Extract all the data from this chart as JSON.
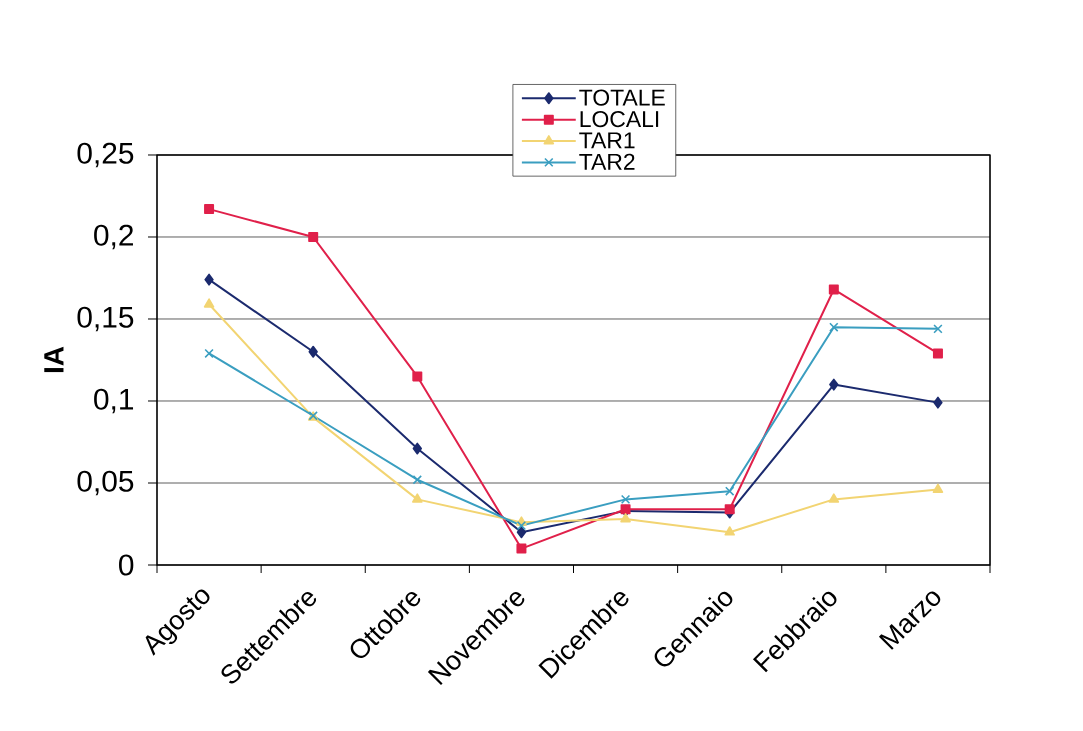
{
  "chart_data": {
    "type": "line",
    "ylabel": "IA",
    "categories": [
      "Agosto",
      "Settembre",
      "Ottobre",
      "Novembre",
      "Dicembre",
      "Gennaio",
      "Febbraio",
      "Marzo"
    ],
    "series": [
      {
        "name": "TOTALE",
        "color": "#1b2a6e",
        "marker": "diamond",
        "values": [
          0.174,
          0.13,
          0.071,
          0.02,
          0.033,
          0.032,
          0.11,
          0.099
        ]
      },
      {
        "name": "LOCALI",
        "color": "#e0204a",
        "marker": "square",
        "values": [
          0.217,
          0.2,
          0.115,
          0.01,
          0.034,
          0.034,
          0.168,
          0.129
        ]
      },
      {
        "name": "TAR1",
        "color": "#f2d472",
        "marker": "triangle",
        "values": [
          0.159,
          0.09,
          0.04,
          0.026,
          0.028,
          0.02,
          0.04,
          0.046
        ]
      },
      {
        "name": "TAR2",
        "color": "#3a9ec0",
        "marker": "cross",
        "values": [
          0.129,
          0.091,
          0.052,
          0.024,
          0.04,
          0.045,
          0.145,
          0.144
        ]
      }
    ],
    "ylim": [
      0,
      0.25
    ],
    "yticks": [
      0,
      {
        "value": 0.05,
        "label": "0,05"
      },
      {
        "value": 0.1,
        "label": "0,1"
      },
      {
        "value": 0.15,
        "label": "0,15"
      },
      {
        "value": 0.2,
        "label": "0,2"
      },
      {
        "value": 0.25,
        "label": "0,25"
      }
    ],
    "grid": "y",
    "legend": "top",
    "line_style": "solid"
  }
}
